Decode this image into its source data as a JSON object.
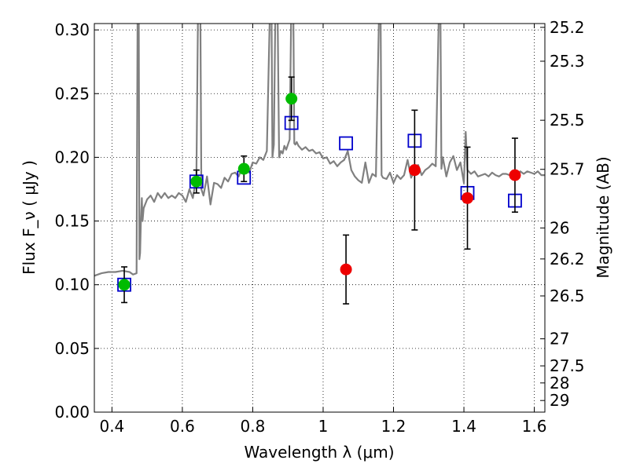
{
  "chart_data": {
    "type": "scatter",
    "xlabel": "Wavelength  λ (μm)",
    "ylabel": "Flux  F_ν  ( μJy )",
    "y2label": "Magnitude (AB)",
    "xlim": [
      0.35,
      1.63
    ],
    "ylim": [
      0.0,
      0.305
    ],
    "grid": true,
    "x_ticks": [
      0.4,
      0.6,
      0.8,
      1.0,
      1.2,
      1.4,
      1.6
    ],
    "x_tick_labels": [
      "0.4",
      "0.6",
      "0.8",
      "1",
      "1.2",
      "1.4",
      "1.6"
    ],
    "y_ticks": [
      0.0,
      0.05,
      0.1,
      0.15,
      0.2,
      0.25,
      0.3
    ],
    "y_tick_labels": [
      "0.00",
      "0.05",
      "0.10",
      "0.15",
      "0.20",
      "0.25",
      "0.30"
    ],
    "mag_ticks": [
      25.2,
      25.3,
      25.5,
      25.7,
      26,
      26.2,
      26.5,
      27,
      27.5,
      28,
      29
    ],
    "mag_tick_labels": [
      "25.2",
      "25.3",
      "25.5",
      "25.7",
      "26",
      "26.2",
      "26.5",
      "27",
      "27.5",
      "28",
      "29"
    ],
    "series": [
      {
        "marker": "square-open",
        "color": "#0000cc",
        "x": [
          0.435,
          0.64,
          0.775,
          0.91,
          1.065,
          1.26,
          1.41,
          1.545
        ],
        "y": [
          0.1,
          0.181,
          0.184,
          0.227,
          0.211,
          0.213,
          0.172,
          0.166
        ]
      },
      {
        "marker": "circle",
        "color": "#00bb00",
        "x": [
          0.435,
          0.64,
          0.775,
          0.91
        ],
        "y": [
          0.1,
          0.181,
          0.191,
          0.246
        ],
        "err": [
          0.014,
          0.009,
          0.01,
          0.017
        ]
      },
      {
        "marker": "circle",
        "color": "#ee0000",
        "x": [
          1.065,
          1.26,
          1.41,
          1.545
        ],
        "y": [
          0.112,
          0.19,
          0.168,
          0.186
        ],
        "err": [
          0.027,
          0.047,
          0.04,
          0.029
        ]
      }
    ],
    "template": {
      "color": "#808080",
      "x": [
        0.35,
        0.37,
        0.39,
        0.41,
        0.43,
        0.45,
        0.46,
        0.47,
        0.473,
        0.476,
        0.478,
        0.48,
        0.482,
        0.485,
        0.487,
        0.49,
        0.5,
        0.51,
        0.52,
        0.53,
        0.54,
        0.55,
        0.56,
        0.57,
        0.58,
        0.59,
        0.6,
        0.61,
        0.62,
        0.63,
        0.64,
        0.645,
        0.648,
        0.651,
        0.654,
        0.66,
        0.67,
        0.68,
        0.69,
        0.7,
        0.71,
        0.72,
        0.73,
        0.74,
        0.75,
        0.76,
        0.77,
        0.78,
        0.79,
        0.8,
        0.81,
        0.82,
        0.83,
        0.84,
        0.85,
        0.853,
        0.856,
        0.86,
        0.865,
        0.87,
        0.875,
        0.88,
        0.885,
        0.89,
        0.895,
        0.9,
        0.905,
        0.91,
        0.915,
        0.918,
        0.921,
        0.925,
        0.93,
        0.94,
        0.95,
        0.96,
        0.97,
        0.98,
        0.99,
        1.0,
        1.01,
        1.02,
        1.03,
        1.04,
        1.05,
        1.06,
        1.07,
        1.08,
        1.09,
        1.1,
        1.11,
        1.12,
        1.13,
        1.14,
        1.15,
        1.16,
        1.163,
        1.166,
        1.17,
        1.18,
        1.19,
        1.2,
        1.21,
        1.22,
        1.23,
        1.24,
        1.25,
        1.26,
        1.27,
        1.28,
        1.29,
        1.3,
        1.31,
        1.32,
        1.33,
        1.333,
        1.336,
        1.34,
        1.35,
        1.36,
        1.37,
        1.38,
        1.39,
        1.4,
        1.405,
        1.41,
        1.42,
        1.43,
        1.44,
        1.45,
        1.46,
        1.47,
        1.48,
        1.49,
        1.5,
        1.51,
        1.52,
        1.53,
        1.54,
        1.55,
        1.56,
        1.57,
        1.58,
        1.59,
        1.6,
        1.61,
        1.62,
        1.63
      ],
      "y": [
        0.107,
        0.109,
        0.11,
        0.11,
        0.111,
        0.11,
        0.108,
        0.109,
        0.33,
        0.33,
        0.12,
        0.125,
        0.148,
        0.168,
        0.15,
        0.16,
        0.167,
        0.17,
        0.165,
        0.172,
        0.168,
        0.172,
        0.168,
        0.17,
        0.168,
        0.172,
        0.17,
        0.165,
        0.175,
        0.168,
        0.185,
        0.33,
        0.33,
        0.33,
        0.175,
        0.17,
        0.185,
        0.163,
        0.18,
        0.179,
        0.176,
        0.184,
        0.181,
        0.187,
        0.188,
        0.185,
        0.192,
        0.19,
        0.188,
        0.196,
        0.195,
        0.2,
        0.198,
        0.205,
        0.33,
        0.33,
        0.2,
        0.21,
        0.33,
        0.33,
        0.2,
        0.205,
        0.203,
        0.209,
        0.206,
        0.21,
        0.214,
        0.33,
        0.33,
        0.211,
        0.21,
        0.212,
        0.209,
        0.206,
        0.208,
        0.205,
        0.206,
        0.203,
        0.204,
        0.199,
        0.2,
        0.195,
        0.197,
        0.193,
        0.196,
        0.198,
        0.205,
        0.19,
        0.185,
        0.182,
        0.18,
        0.196,
        0.18,
        0.187,
        0.185,
        0.33,
        0.33,
        0.186,
        0.184,
        0.183,
        0.188,
        0.18,
        0.186,
        0.183,
        0.186,
        0.198,
        0.184,
        0.19,
        0.194,
        0.186,
        0.19,
        0.192,
        0.195,
        0.193,
        0.33,
        0.33,
        0.191,
        0.2,
        0.185,
        0.196,
        0.201,
        0.19,
        0.196,
        0.18,
        0.22,
        0.19,
        0.187,
        0.189,
        0.185,
        0.186,
        0.187,
        0.185,
        0.188,
        0.186,
        0.185,
        0.187,
        0.187,
        0.186,
        0.184,
        0.186,
        0.189,
        0.187,
        0.189,
        0.188,
        0.187,
        0.189,
        0.186,
        0.186
      ]
    }
  }
}
